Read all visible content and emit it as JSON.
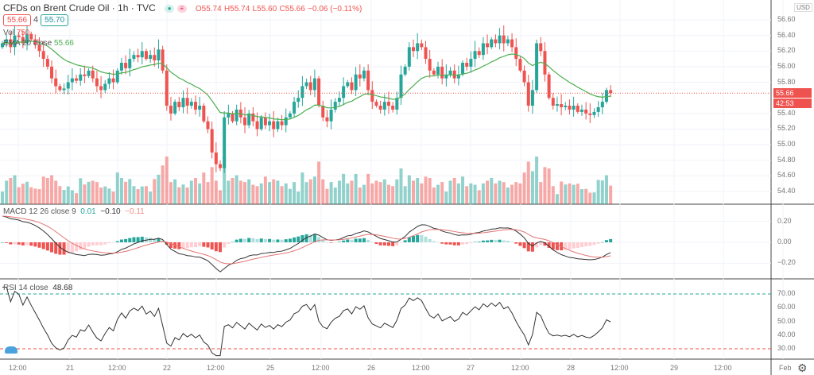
{
  "header": {
    "title": "CFDs on Brent Crude Oil · 1h · TVC",
    "open": "O55.74",
    "high": "H55.74",
    "low": "L55.60",
    "close": "C55.66",
    "change": "−0.06 (−0.11%)",
    "bid": "55.66",
    "spread": "4",
    "ask": "55.70",
    "vol_label": "Vol",
    "vol_value": "750",
    "ema_label": "EMA 20 close",
    "ema_value": "55.66"
  },
  "macd_legend": {
    "label": "MACD 12 26 close 9",
    "hist": "0.01",
    "macd": "−0.10",
    "signal": "−0.11"
  },
  "rsi_legend": {
    "label": "RSI 14 close",
    "value": "48.68"
  },
  "price_axis": {
    "currency": "USD",
    "ticks": [
      "56.60",
      "56.40",
      "56.20",
      "56.00",
      "55.80",
      "55.40",
      "55.20",
      "55.00",
      "54.80",
      "54.60",
      "54.40"
    ],
    "last_price": "55.66",
    "countdown": "42:53"
  },
  "macd_axis": [
    "0.20",
    "0.00",
    "−0.20"
  ],
  "rsi_axis": [
    "70.00",
    "60.00",
    "50.00",
    "40.00",
    "30.00"
  ],
  "time_axis": [
    "12:00",
    "21",
    "12:00",
    "22",
    "12:00",
    "25",
    "12:00",
    "26",
    "12:00",
    "27",
    "12:00",
    "28",
    "12:00",
    "29",
    "12:00",
    "Feb"
  ],
  "colors": {
    "up": "#26a69a",
    "down": "#ef5350",
    "ema": "#4caf50"
  },
  "chart_data": {
    "type": "candlestick",
    "interval": "1h",
    "symbol": "Brent Crude Oil",
    "ylim": [
      54.3,
      56.7
    ],
    "closes": [
      56.3,
      56.35,
      56.25,
      56.4,
      56.38,
      56.3,
      56.42,
      56.35,
      56.28,
      56.2,
      56.1,
      56.0,
      55.85,
      55.75,
      55.7,
      55.72,
      55.8,
      55.85,
      55.82,
      55.9,
      55.88,
      55.95,
      55.85,
      55.75,
      55.7,
      55.78,
      55.85,
      55.8,
      55.95,
      56.05,
      55.98,
      56.1,
      56.15,
      56.12,
      56.2,
      56.1,
      56.15,
      56.08,
      56.22,
      55.95,
      55.5,
      55.4,
      55.55,
      55.48,
      55.6,
      55.5,
      55.55,
      55.45,
      55.5,
      55.3,
      55.2,
      54.9,
      54.75,
      54.7,
      55.35,
      55.4,
      55.3,
      55.45,
      55.35,
      55.25,
      55.4,
      55.3,
      55.2,
      55.35,
      55.25,
      55.3,
      55.2,
      55.3,
      55.25,
      55.35,
      55.4,
      55.55,
      55.6,
      55.75,
      55.8,
      55.7,
      55.85,
      55.5,
      55.35,
      55.3,
      55.45,
      55.55,
      55.6,
      55.75,
      55.8,
      55.7,
      55.9,
      55.85,
      55.95,
      55.7,
      55.55,
      55.5,
      55.45,
      55.55,
      55.5,
      55.45,
      55.6,
      55.9,
      56.0,
      56.25,
      56.2,
      56.3,
      56.25,
      56.1,
      55.95,
      55.9,
      56.0,
      55.85,
      55.9,
      55.95,
      55.85,
      55.9,
      56.05,
      56.0,
      56.1,
      56.2,
      56.15,
      56.3,
      56.25,
      56.35,
      56.3,
      56.4,
      56.3,
      56.35,
      56.25,
      56.1,
      55.95,
      55.8,
      55.5,
      55.7,
      56.3,
      56.2,
      55.9,
      55.6,
      55.5,
      55.52,
      55.48,
      55.5,
      55.45,
      55.5,
      55.42,
      55.45,
      55.4,
      55.38,
      55.42,
      55.48,
      55.55,
      55.7,
      55.66
    ],
    "ema_period": 20,
    "macd": [
      12,
      26,
      9
    ],
    "rsi_period": 14,
    "rsi_levels": [
      70,
      30
    ]
  }
}
